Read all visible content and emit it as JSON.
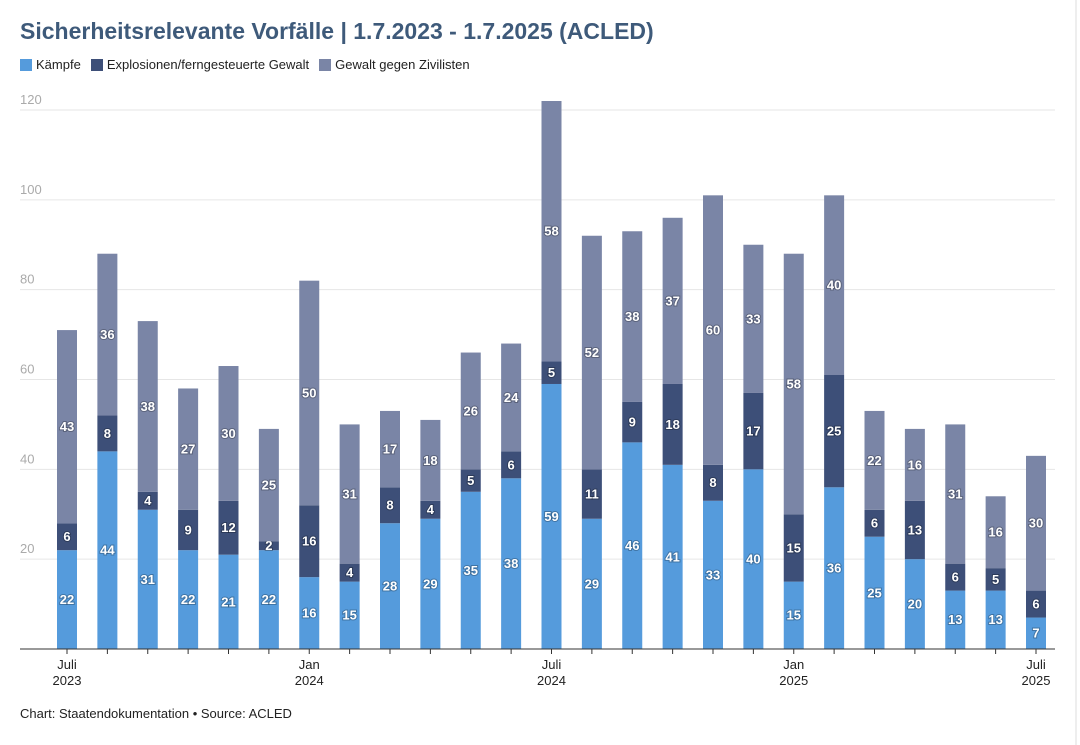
{
  "chart_data": {
    "type": "stacked-bar",
    "title": "Sicherheitsrelevante Vorfälle | 1.7.2023 - 1.7.2025 (ACLED)",
    "footer": "Chart: Staatendokumentation • Source: ACLED",
    "categories": [
      "Juli\n2023",
      null,
      null,
      null,
      null,
      null,
      "Jan\n2024",
      null,
      null,
      null,
      null,
      null,
      "Juli\n2024",
      null,
      null,
      null,
      null,
      null,
      "Jan\n2025",
      null,
      null,
      null,
      null,
      null,
      "Juli\n2025"
    ],
    "series": [
      {
        "name": "Kämpfe",
        "color": "#559bdc",
        "values": [
          22,
          44,
          31,
          22,
          21,
          22,
          16,
          15,
          28,
          29,
          35,
          38,
          59,
          29,
          46,
          41,
          33,
          40,
          15,
          36,
          25,
          20,
          13,
          13,
          7
        ]
      },
      {
        "name": "Explosionen/ferngesteuerte Gewalt",
        "color": "#3d4f78",
        "values": [
          6,
          8,
          4,
          9,
          12,
          2,
          16,
          4,
          8,
          4,
          5,
          6,
          5,
          11,
          9,
          18,
          8,
          17,
          15,
          25,
          6,
          13,
          6,
          5,
          6
        ]
      },
      {
        "name": "Gewalt gegen Zivilisten",
        "color": "#7a85a6",
        "values": [
          43,
          36,
          38,
          27,
          30,
          25,
          50,
          31,
          17,
          18,
          26,
          24,
          58,
          52,
          38,
          37,
          60,
          33,
          58,
          40,
          22,
          16,
          31,
          16,
          30
        ]
      }
    ],
    "ylim": [
      0,
      122
    ],
    "yticks": [
      20,
      40,
      60,
      80,
      100,
      120
    ],
    "grid": true
  }
}
